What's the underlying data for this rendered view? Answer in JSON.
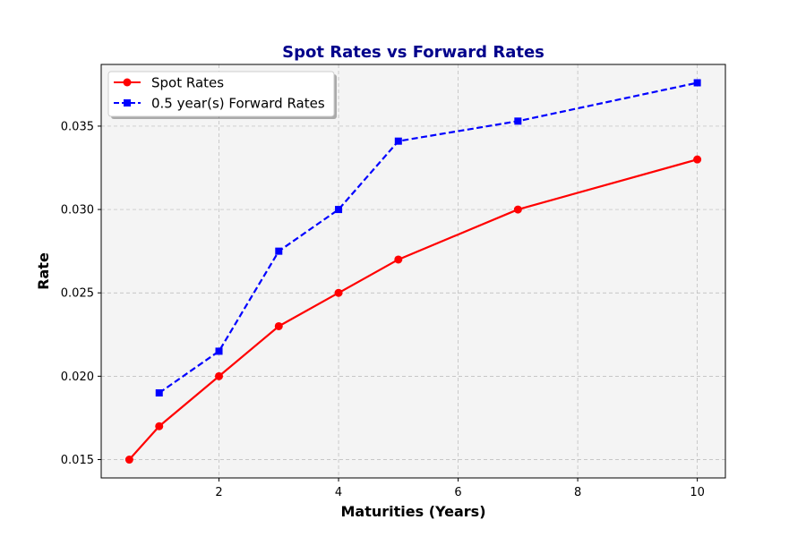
{
  "chart_data": {
    "type": "line",
    "title": "Spot Rates vs Forward Rates",
    "xlabel": "Maturities (Years)",
    "ylabel": "Rate",
    "xlim": [
      0.03,
      10.47
    ],
    "ylim": [
      0.0139,
      0.0387
    ],
    "xticks": [
      2,
      4,
      6,
      8,
      10
    ],
    "yticks": [
      0.015,
      0.02,
      0.025,
      0.03,
      0.035
    ],
    "ytick_labels": [
      "0.015",
      "0.020",
      "0.025",
      "0.030",
      "0.035"
    ],
    "grid": true,
    "legend_position": "top-left",
    "series": [
      {
        "name": "Spot Rates",
        "color": "#ff0000",
        "marker": "circle",
        "line_style": "solid",
        "x": [
          0.5,
          1,
          2,
          3,
          4,
          5,
          7,
          10
        ],
        "y": [
          0.015,
          0.017,
          0.02,
          0.023,
          0.025,
          0.027,
          0.03,
          0.033
        ]
      },
      {
        "name": "0.5 year(s) Forward Rates",
        "color": "#0000ff",
        "marker": "square",
        "line_style": "dashed",
        "x": [
          1,
          2,
          3,
          4,
          5,
          7,
          10
        ],
        "y": [
          0.019,
          0.0215,
          0.0275,
          0.03,
          0.0341,
          0.0353,
          0.0376
        ]
      }
    ]
  }
}
